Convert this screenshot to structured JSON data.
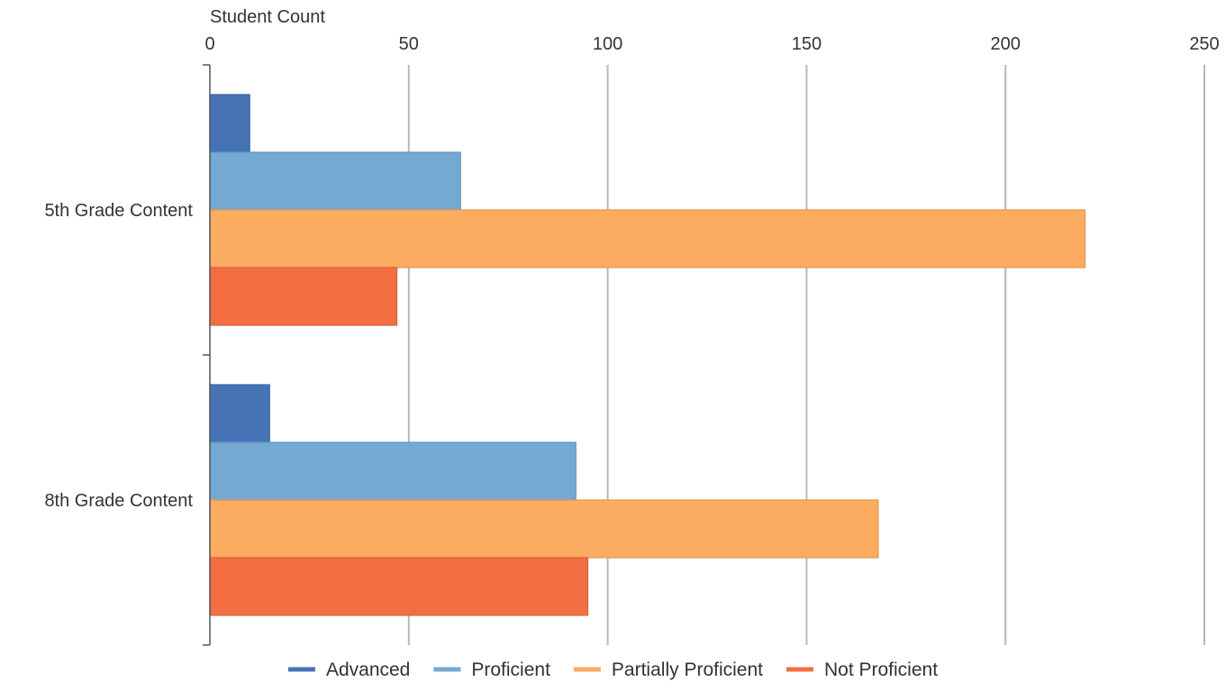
{
  "chart_data": {
    "type": "bar",
    "orientation": "horizontal",
    "title": "",
    "xlabel": "Student Count",
    "ylabel": "",
    "xlim": [
      0,
      250
    ],
    "x_ticks": [
      "0",
      "50",
      "100",
      "150",
      "200",
      "250"
    ],
    "x_axis_position": "top",
    "grid": true,
    "legend_position": "bottom",
    "categories": [
      "5th Grade Content",
      "8th Grade Content"
    ],
    "series": [
      {
        "name": "Advanced",
        "values": [
          10,
          15
        ],
        "color": "#4573b6",
        "edge": "#3a64a0"
      },
      {
        "name": "Proficient",
        "values": [
          63,
          92
        ],
        "color": "#74aad2",
        "edge": "#6496bb"
      },
      {
        "name": "Partially Proficient",
        "values": [
          220,
          168
        ],
        "color": "#fbac60",
        "edge": "#e09850"
      },
      {
        "name": "Not Proficient",
        "values": [
          47,
          95
        ],
        "color": "#f36f43",
        "edge": "#d9623a"
      }
    ]
  }
}
